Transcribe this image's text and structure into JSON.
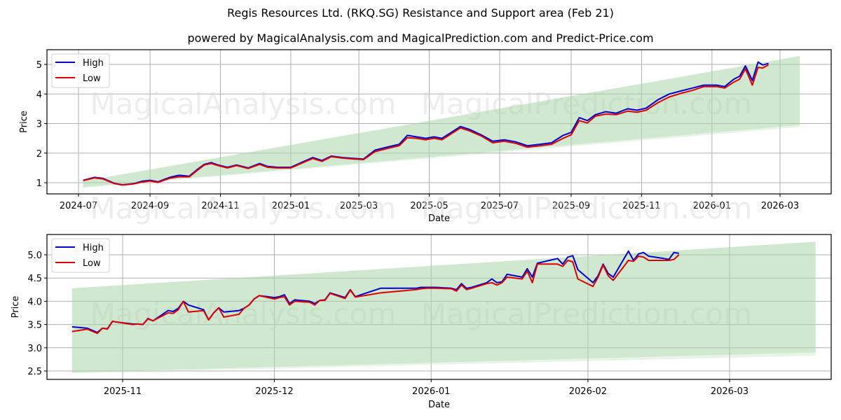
{
  "title": "Regis Resources Ltd. (RKQ.SG) Resistance and Support area (Feb 21)",
  "subtitle": "powered by MagicalAnalysis.com and MagicalPrediction.com and Predict-Price.com",
  "watermarks": [
    "MagicalAnalysis.com",
    "MagicalPrediction.com"
  ],
  "colors": {
    "high": "#0000cc",
    "low": "#dd0000",
    "band": "#a8d5a8",
    "grid": "#b0b0b0"
  },
  "chart_data": [
    {
      "type": "line",
      "title": "",
      "xlabel": "Date",
      "ylabel": "Price",
      "ylim": [
        0.6,
        5.5
      ],
      "x_ticks": [
        "2024-07",
        "2024-09",
        "2024-11",
        "2025-01",
        "2025-03",
        "2025-05",
        "2025-07",
        "2025-09",
        "2025-11",
        "2026-01",
        "2026-03"
      ],
      "y_ticks": [
        "1",
        "2",
        "3",
        "4",
        "5"
      ],
      "grid": true,
      "legend": {
        "position": "upper left",
        "entries": [
          "High",
          "Low"
        ]
      },
      "band": {
        "label": "Resistance and Support area",
        "x": [
          "2024-07-05",
          "2026-03-18"
        ],
        "upper": [
          1.05,
          5.28
        ],
        "lower": [
          0.85,
          2.95
        ]
      },
      "series": [
        {
          "name": "High",
          "x": [
            "2024-07-05",
            "2024-07-15",
            "2024-07-22",
            "2024-08-01",
            "2024-08-08",
            "2024-08-18",
            "2024-08-25",
            "2024-09-01",
            "2024-09-08",
            "2024-09-18",
            "2024-09-26",
            "2024-10-05",
            "2024-10-12",
            "2024-10-18",
            "2024-10-24",
            "2024-10-30",
            "2024-11-07",
            "2024-11-15",
            "2024-11-25",
            "2024-12-05",
            "2024-12-12",
            "2024-12-20",
            "2025-01-01",
            "2025-01-10",
            "2025-01-20",
            "2025-01-28",
            "2025-02-05",
            "2025-02-15",
            "2025-02-25",
            "2025-03-05",
            "2025-03-15",
            "2025-03-25",
            "2025-04-05",
            "2025-04-12",
            "2025-04-20",
            "2025-04-28",
            "2025-05-05",
            "2025-05-12",
            "2025-05-20",
            "2025-05-28",
            "2025-06-05",
            "2025-06-15",
            "2025-06-25",
            "2025-07-05",
            "2025-07-15",
            "2025-07-25",
            "2025-08-05",
            "2025-08-15",
            "2025-08-25",
            "2025-09-01",
            "2025-09-08",
            "2025-09-15",
            "2025-09-22",
            "2025-10-01",
            "2025-10-10",
            "2025-10-20",
            "2025-10-28",
            "2025-11-05",
            "2025-11-15",
            "2025-11-25",
            "2025-12-05",
            "2025-12-15",
            "2025-12-25",
            "2026-01-05",
            "2026-01-12",
            "2026-01-20",
            "2026-01-25",
            "2026-01-30",
            "2026-02-05",
            "2026-02-10",
            "2026-02-14",
            "2026-02-19"
          ],
          "values": [
            1.08,
            1.18,
            1.15,
            0.98,
            0.93,
            0.97,
            1.05,
            1.08,
            1.03,
            1.18,
            1.25,
            1.22,
            1.45,
            1.62,
            1.68,
            1.6,
            1.52,
            1.6,
            1.5,
            1.65,
            1.55,
            1.52,
            1.52,
            1.68,
            1.85,
            1.75,
            1.9,
            1.85,
            1.82,
            1.8,
            2.1,
            2.2,
            2.3,
            2.6,
            2.55,
            2.5,
            2.55,
            2.5,
            2.7,
            2.9,
            2.8,
            2.62,
            2.4,
            2.45,
            2.38,
            2.25,
            2.3,
            2.35,
            2.6,
            2.7,
            3.2,
            3.1,
            3.3,
            3.4,
            3.35,
            3.5,
            3.45,
            3.52,
            3.8,
            4.0,
            4.1,
            4.2,
            4.3,
            4.3,
            4.25,
            4.5,
            4.6,
            4.95,
            4.45,
            5.08,
            4.98,
            5.03
          ]
        },
        {
          "name": "Low",
          "x": [
            "2024-07-05",
            "2024-07-15",
            "2024-07-22",
            "2024-08-01",
            "2024-08-08",
            "2024-08-18",
            "2024-08-25",
            "2024-09-01",
            "2024-09-08",
            "2024-09-18",
            "2024-09-26",
            "2024-10-05",
            "2024-10-12",
            "2024-10-18",
            "2024-10-24",
            "2024-10-30",
            "2024-11-07",
            "2024-11-15",
            "2024-11-25",
            "2024-12-05",
            "2024-12-12",
            "2024-12-20",
            "2025-01-01",
            "2025-01-10",
            "2025-01-20",
            "2025-01-28",
            "2025-02-05",
            "2025-02-15",
            "2025-02-25",
            "2025-03-05",
            "2025-03-15",
            "2025-03-25",
            "2025-04-05",
            "2025-04-12",
            "2025-04-20",
            "2025-04-28",
            "2025-05-05",
            "2025-05-12",
            "2025-05-20",
            "2025-05-28",
            "2025-06-05",
            "2025-06-15",
            "2025-06-25",
            "2025-07-05",
            "2025-07-15",
            "2025-07-25",
            "2025-08-05",
            "2025-08-15",
            "2025-08-25",
            "2025-09-01",
            "2025-09-08",
            "2025-09-15",
            "2025-09-22",
            "2025-10-01",
            "2025-10-10",
            "2025-10-20",
            "2025-10-28",
            "2025-11-05",
            "2025-11-15",
            "2025-11-25",
            "2025-12-05",
            "2025-12-15",
            "2025-12-25",
            "2026-01-05",
            "2026-01-12",
            "2026-01-20",
            "2026-01-25",
            "2026-01-30",
            "2026-02-05",
            "2026-02-10",
            "2026-02-14",
            "2026-02-19"
          ],
          "values": [
            1.07,
            1.16,
            1.13,
            0.97,
            0.92,
            0.96,
            1.02,
            1.06,
            1.01,
            1.15,
            1.2,
            1.2,
            1.42,
            1.6,
            1.65,
            1.58,
            1.5,
            1.58,
            1.48,
            1.62,
            1.52,
            1.5,
            1.5,
            1.65,
            1.82,
            1.72,
            1.88,
            1.83,
            1.8,
            1.78,
            2.05,
            2.15,
            2.25,
            2.52,
            2.5,
            2.45,
            2.5,
            2.45,
            2.65,
            2.85,
            2.75,
            2.58,
            2.35,
            2.4,
            2.33,
            2.2,
            2.25,
            2.3,
            2.5,
            2.62,
            3.1,
            3.02,
            3.25,
            3.32,
            3.3,
            3.42,
            3.38,
            3.45,
            3.7,
            3.9,
            4.02,
            4.12,
            4.25,
            4.25,
            4.2,
            4.4,
            4.5,
            4.85,
            4.3,
            4.9,
            4.88,
            4.98
          ]
        }
      ]
    },
    {
      "type": "line",
      "title": "",
      "xlabel": "Date",
      "ylabel": "Price",
      "ylim": [
        2.3,
        5.43
      ],
      "x_ticks": [
        "2025-11",
        "2025-12",
        "2026-01",
        "2026-02",
        "2026-03"
      ],
      "y_ticks": [
        "2.5",
        "3.0",
        "3.5",
        "4.0",
        "4.5",
        "5.0"
      ],
      "grid": true,
      "legend": {
        "position": "upper left",
        "entries": [
          "High",
          "Low"
        ]
      },
      "band": {
        "label": "Resistance and Support area",
        "x": [
          "2025-10-22",
          "2026-03-18"
        ],
        "upper": [
          4.28,
          5.28
        ],
        "lower": [
          2.47,
          2.9
        ]
      },
      "series": [
        {
          "name": "High",
          "x": [
            "2025-10-22",
            "2025-10-25",
            "2025-10-27",
            "2025-10-28",
            "2025-10-29",
            "2025-10-30",
            "2025-10-31",
            "2025-11-03",
            "2025-11-04",
            "2025-11-05",
            "2025-11-06",
            "2025-11-07",
            "2025-11-10",
            "2025-11-11",
            "2025-11-12",
            "2025-11-13",
            "2025-11-14",
            "2025-11-17",
            "2025-11-18",
            "2025-11-19",
            "2025-11-20",
            "2025-11-21",
            "2025-11-24",
            "2025-11-25",
            "2025-11-26",
            "2025-11-27",
            "2025-11-28",
            "2025-12-01",
            "2025-12-02",
            "2025-12-03",
            "2025-12-04",
            "2025-12-05",
            "2025-12-08",
            "2025-12-09",
            "2025-12-10",
            "2025-12-11",
            "2025-12-12",
            "2025-12-15",
            "2025-12-16",
            "2025-12-17",
            "2025-12-22",
            "2025-12-29",
            "2025-12-30",
            "2025-12-31",
            "2026-01-02",
            "2026-01-05",
            "2026-01-06",
            "2026-01-07",
            "2026-01-08",
            "2026-01-09",
            "2026-01-12",
            "2026-01-13",
            "2026-01-14",
            "2026-01-15",
            "2026-01-16",
            "2026-01-19",
            "2026-01-20",
            "2026-01-21",
            "2026-01-22",
            "2026-01-26",
            "2026-01-27",
            "2026-01-28",
            "2026-01-29",
            "2026-01-30",
            "2026-02-02",
            "2026-02-03",
            "2026-02-04",
            "2026-02-05",
            "2026-02-06",
            "2026-02-09",
            "2026-02-10",
            "2026-02-11",
            "2026-02-12",
            "2026-02-13",
            "2026-02-16",
            "2026-02-17",
            "2026-02-18",
            "2026-02-19"
          ],
          "values": [
            3.45,
            3.42,
            3.33,
            3.42,
            3.41,
            3.57,
            3.55,
            3.51,
            3.51,
            3.5,
            3.63,
            3.58,
            3.8,
            3.78,
            3.85,
            4.0,
            3.92,
            3.82,
            3.6,
            3.75,
            3.86,
            3.77,
            3.8,
            3.85,
            3.92,
            4.05,
            4.12,
            4.08,
            4.1,
            4.14,
            3.95,
            4.03,
            4.0,
            3.95,
            4.02,
            4.03,
            4.18,
            4.08,
            4.25,
            4.1,
            4.28,
            4.28,
            4.3,
            4.3,
            4.3,
            4.28,
            4.25,
            4.38,
            4.28,
            4.3,
            4.4,
            4.48,
            4.4,
            4.42,
            4.58,
            4.52,
            4.7,
            4.52,
            4.82,
            4.92,
            4.8,
            4.95,
            4.98,
            4.68,
            4.4,
            4.55,
            4.8,
            4.6,
            4.52,
            5.08,
            4.88,
            5.02,
            5.05,
            4.97,
            4.92,
            4.9,
            5.05,
            5.03
          ]
        },
        {
          "name": "Low",
          "x": [
            "2025-10-22",
            "2025-10-25",
            "2025-10-27",
            "2025-10-28",
            "2025-10-29",
            "2025-10-30",
            "2025-10-31",
            "2025-11-03",
            "2025-11-04",
            "2025-11-05",
            "2025-11-06",
            "2025-11-07",
            "2025-11-10",
            "2025-11-11",
            "2025-11-12",
            "2025-11-13",
            "2025-11-14",
            "2025-11-17",
            "2025-11-18",
            "2025-11-19",
            "2025-11-20",
            "2025-11-21",
            "2025-11-24",
            "2025-11-25",
            "2025-11-26",
            "2025-11-27",
            "2025-11-28",
            "2025-12-01",
            "2025-12-02",
            "2025-12-03",
            "2025-12-04",
            "2025-12-05",
            "2025-12-08",
            "2025-12-09",
            "2025-12-10",
            "2025-12-11",
            "2025-12-12",
            "2025-12-15",
            "2025-12-16",
            "2025-12-17",
            "2025-12-22",
            "2025-12-29",
            "2025-12-30",
            "2025-12-31",
            "2026-01-02",
            "2026-01-05",
            "2026-01-06",
            "2026-01-07",
            "2026-01-08",
            "2026-01-09",
            "2026-01-12",
            "2026-01-13",
            "2026-01-14",
            "2026-01-15",
            "2026-01-16",
            "2026-01-19",
            "2026-01-20",
            "2026-01-21",
            "2026-01-22",
            "2026-01-26",
            "2026-01-27",
            "2026-01-28",
            "2026-01-29",
            "2026-01-30",
            "2026-02-02",
            "2026-02-03",
            "2026-02-04",
            "2026-02-05",
            "2026-02-06",
            "2026-02-09",
            "2026-02-10",
            "2026-02-11",
            "2026-02-12",
            "2026-02-13",
            "2026-02-16",
            "2026-02-17",
            "2026-02-18",
            "2026-02-19"
          ],
          "values": [
            3.35,
            3.4,
            3.31,
            3.42,
            3.4,
            3.57,
            3.55,
            3.5,
            3.51,
            3.5,
            3.62,
            3.58,
            3.75,
            3.74,
            3.82,
            4.0,
            3.77,
            3.8,
            3.6,
            3.75,
            3.86,
            3.66,
            3.72,
            3.85,
            3.92,
            4.05,
            4.12,
            4.05,
            4.08,
            4.1,
            3.92,
            4.0,
            3.98,
            3.92,
            4.02,
            4.02,
            4.17,
            4.06,
            4.24,
            4.09,
            4.18,
            4.25,
            4.27,
            4.28,
            4.28,
            4.27,
            4.22,
            4.35,
            4.25,
            4.28,
            4.38,
            4.4,
            4.35,
            4.4,
            4.52,
            4.48,
            4.65,
            4.4,
            4.8,
            4.8,
            4.75,
            4.88,
            4.85,
            4.48,
            4.32,
            4.52,
            4.78,
            4.55,
            4.45,
            4.88,
            4.86,
            4.97,
            4.95,
            4.88,
            4.88,
            4.88,
            4.9,
            5.0
          ]
        }
      ]
    }
  ]
}
